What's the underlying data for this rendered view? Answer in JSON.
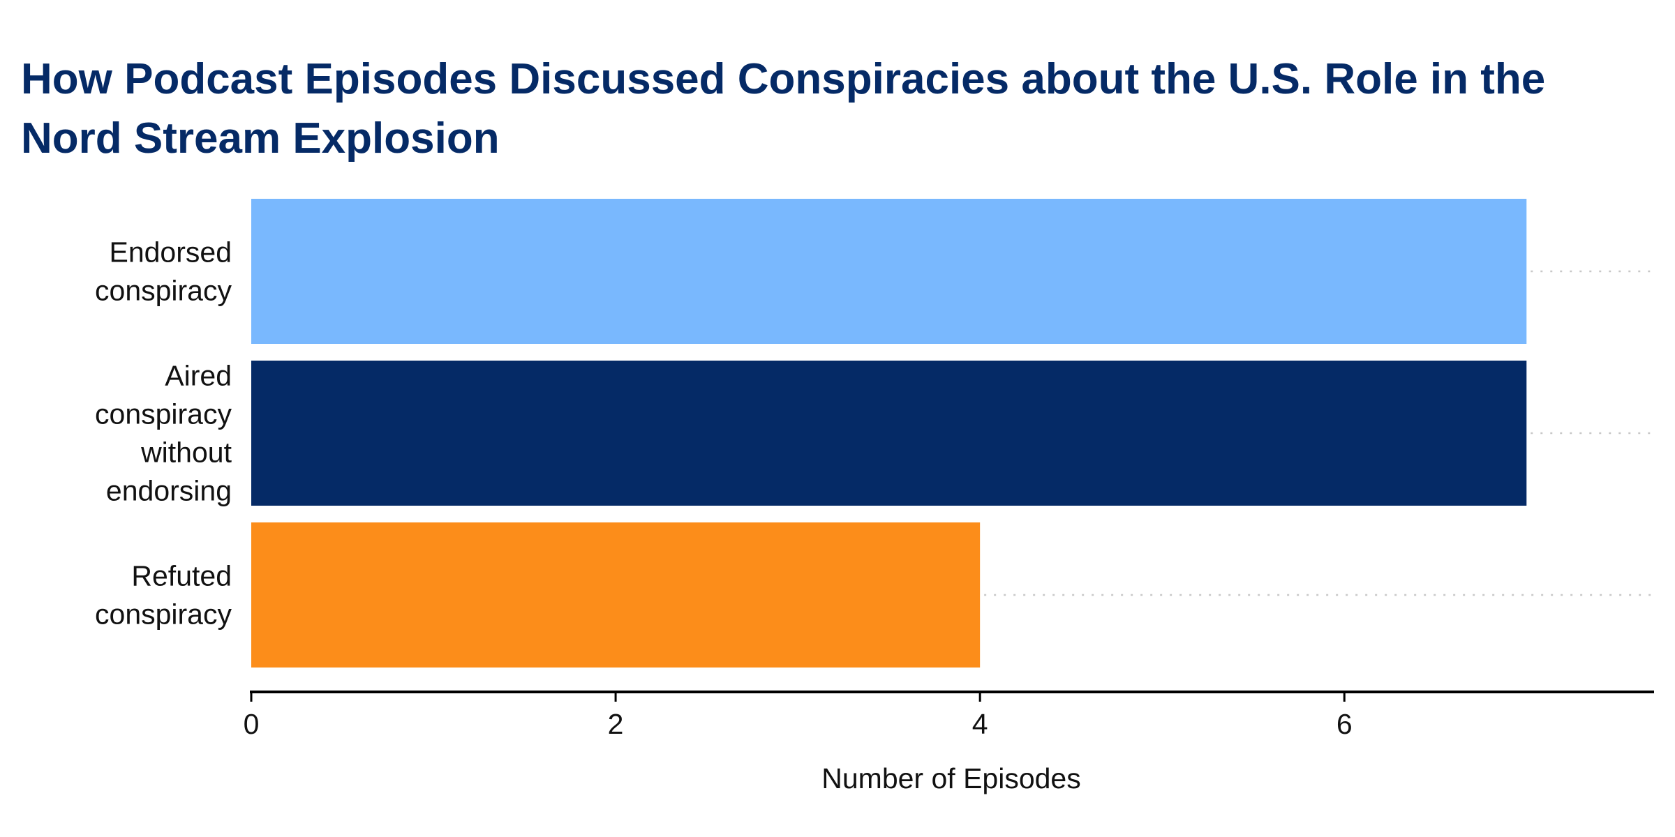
{
  "chart_data": {
    "type": "bar",
    "orientation": "horizontal",
    "title_lines": [
      "How Podcast Episodes Discussed Conspiracies about the U.S. Role in the",
      "Nord Stream Explosion"
    ],
    "categories": [
      [
        "Endorsed",
        "conspiracy"
      ],
      [
        "Aired",
        "conspiracy",
        "without",
        "endorsing"
      ],
      [
        "Refuted",
        "conspiracy"
      ]
    ],
    "values": [
      7,
      7,
      4
    ],
    "colors": [
      "#79b8fe",
      "#052a66",
      "#fc8d1a"
    ],
    "xlabel": "Number of Episodes",
    "ylabel": "",
    "xlim": [
      0,
      7.7
    ],
    "xticks": [
      0,
      2,
      4,
      6
    ],
    "grid": "dotted horizontal guide lines per bar"
  }
}
